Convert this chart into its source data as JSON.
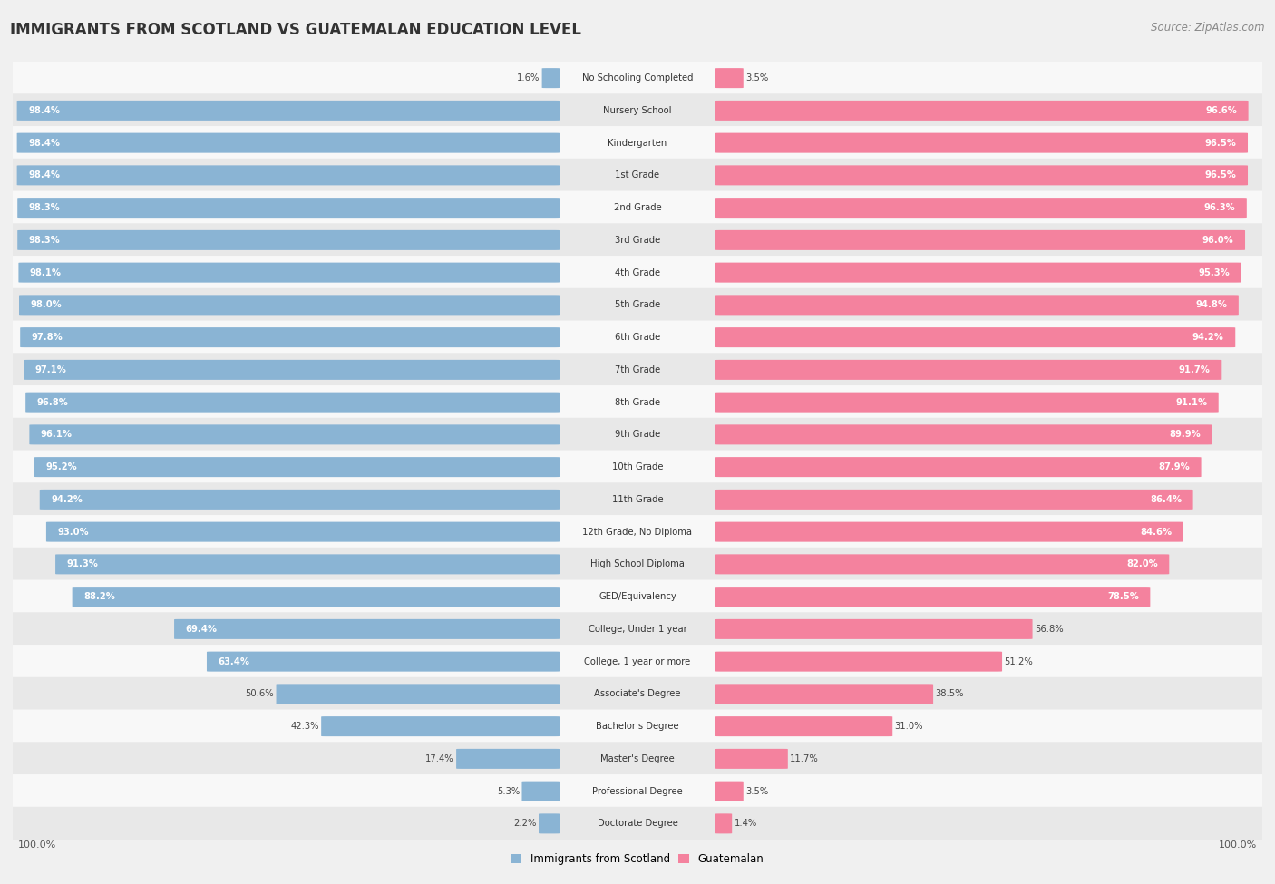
{
  "title": "IMMIGRANTS FROM SCOTLAND VS GUATEMALAN EDUCATION LEVEL",
  "source": "Source: ZipAtlas.com",
  "categories": [
    "No Schooling Completed",
    "Nursery School",
    "Kindergarten",
    "1st Grade",
    "2nd Grade",
    "3rd Grade",
    "4th Grade",
    "5th Grade",
    "6th Grade",
    "7th Grade",
    "8th Grade",
    "9th Grade",
    "10th Grade",
    "11th Grade",
    "12th Grade, No Diploma",
    "High School Diploma",
    "GED/Equivalency",
    "College, Under 1 year",
    "College, 1 year or more",
    "Associate's Degree",
    "Bachelor's Degree",
    "Master's Degree",
    "Professional Degree",
    "Doctorate Degree"
  ],
  "scotland_values": [
    1.6,
    98.4,
    98.4,
    98.4,
    98.3,
    98.3,
    98.1,
    98.0,
    97.8,
    97.1,
    96.8,
    96.1,
    95.2,
    94.2,
    93.0,
    91.3,
    88.2,
    69.4,
    63.4,
    50.6,
    42.3,
    17.4,
    5.3,
    2.2
  ],
  "guatemalan_values": [
    3.5,
    96.6,
    96.5,
    96.5,
    96.3,
    96.0,
    95.3,
    94.8,
    94.2,
    91.7,
    91.1,
    89.9,
    87.9,
    86.4,
    84.6,
    82.0,
    78.5,
    56.8,
    51.2,
    38.5,
    31.0,
    11.7,
    3.5,
    1.4
  ],
  "scotland_color": "#8ab4d4",
  "guatemalan_color": "#f4829e",
  "background_color": "#f0f0f0",
  "row_bg_light": "#f8f8f8",
  "row_bg_dark": "#e8e8e8",
  "max_value": 100.0,
  "legend_scotland": "Immigrants from Scotland",
  "legend_guatemalan": "Guatemalan"
}
